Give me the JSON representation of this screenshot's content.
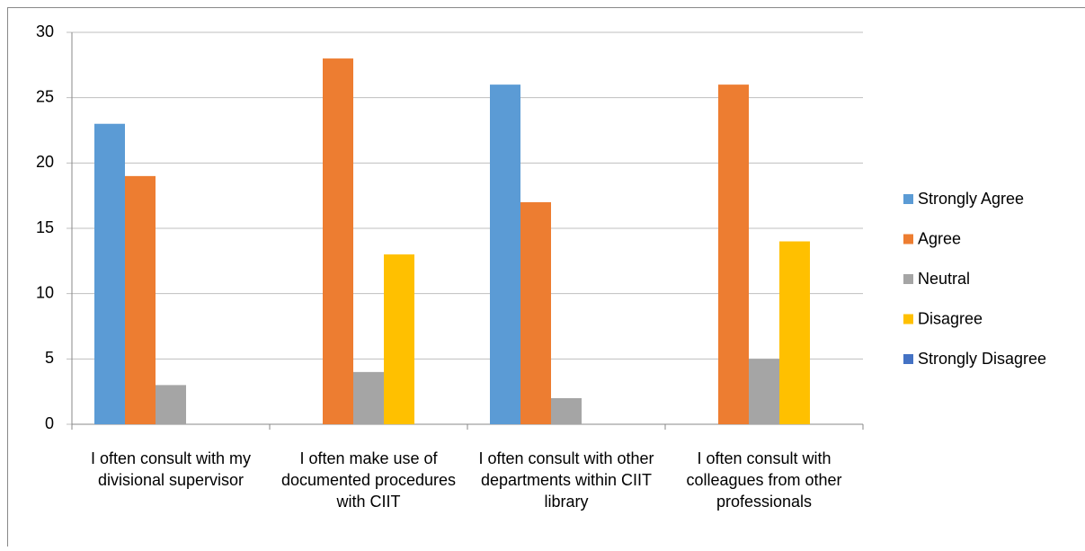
{
  "chart_data": {
    "type": "bar",
    "categories": [
      "I often consult with my divisional supervisor",
      "I often make use of documented procedures with CIIT",
      "I often consult with other departments within CIIT library",
      "I often consult with colleagues from other professionals"
    ],
    "series": [
      {
        "name": "Strongly Agree",
        "color": "#5b9bd5",
        "values": [
          23,
          0,
          26,
          0
        ]
      },
      {
        "name": "Agree",
        "color": "#ed7d31",
        "values": [
          19,
          28,
          17,
          26
        ]
      },
      {
        "name": "Neutral",
        "color": "#a5a5a5",
        "values": [
          3,
          4,
          2,
          5
        ]
      },
      {
        "name": "Disagree",
        "color": "#ffc000",
        "values": [
          0,
          13,
          0,
          14
        ]
      },
      {
        "name": "Strongly Disagree",
        "color": "#4472c4",
        "values": [
          0,
          0,
          0,
          0
        ]
      }
    ],
    "ylim": [
      0,
      30
    ],
    "yticks": [
      0,
      5,
      10,
      15,
      20,
      25,
      30
    ],
    "grid": true,
    "legend": "right"
  }
}
